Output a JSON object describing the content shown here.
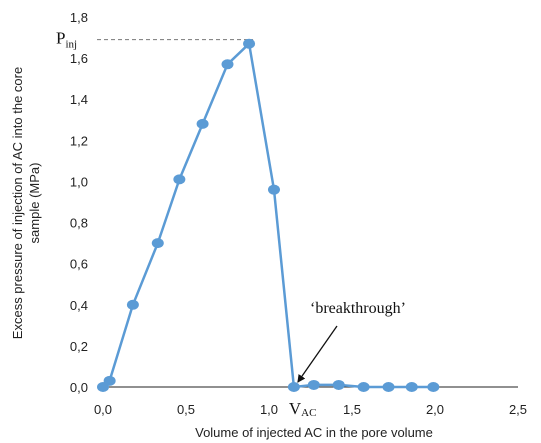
{
  "chart_data": {
    "type": "line",
    "xlabel": "Volume  of injected AC in the pore volume",
    "ylabel": [
      "Excess pressure of injection of AC into the core",
      "sample (MPa)"
    ],
    "xlim": [
      0,
      2.5
    ],
    "ylim": [
      0,
      1.8
    ],
    "x_ticks": [
      "0,0",
      "0,5",
      "1,0",
      "1,5",
      "2,0",
      "2,5"
    ],
    "y_ticks": [
      "0,0",
      "0,2",
      "0,4",
      "0,6",
      "0,8",
      "1,0",
      "1,2",
      "1,4",
      "1,6",
      "1,8"
    ],
    "grid": false,
    "legend": "none",
    "series": [
      {
        "color": "#5b9bd5",
        "x": [
          0.0,
          0.04,
          0.18,
          0.33,
          0.46,
          0.6,
          0.75,
          0.88,
          1.03,
          1.15,
          1.27,
          1.42,
          1.57,
          1.72,
          1.86,
          1.99
        ],
        "y": [
          0.0,
          0.03,
          0.4,
          0.7,
          1.01,
          1.28,
          1.57,
          1.67,
          0.96,
          0.0,
          0.01,
          0.01,
          0.0,
          0.0,
          0.0,
          0.0
        ]
      }
    ],
    "annotations": {
      "pinj": {
        "main": "P",
        "sub": "inj",
        "y": 1.69
      },
      "vac": {
        "main": "V",
        "sub": "AC",
        "x": 1.15
      },
      "breakthrough": {
        "text": "‘breakthrough’",
        "x": 1.15,
        "y": 0.0
      }
    }
  }
}
